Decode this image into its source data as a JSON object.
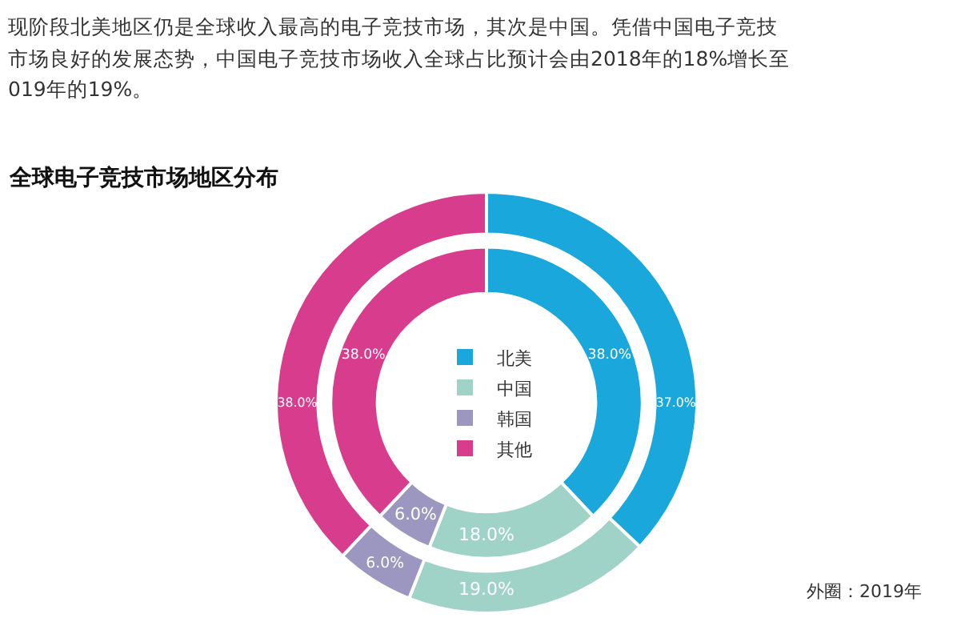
{
  "chart_data": {
    "type": "donut",
    "title": "全球电子竞技市场地区分布",
    "annotations": [
      "现阶段北美地区仍是全球收入最高的电子竞技市场，其次是中国。凭借中国电子竞技",
      "市场良好的发展态势，中国电子竞技市场收入全球占比预计会由2018年的18%增长至",
      "019年的19%。",
      "外圈：2019年"
    ],
    "categories": [
      "北美",
      "中国",
      "韩国",
      "其他"
    ],
    "colors": [
      "#1aa7dc",
      "#9fd3c7",
      "#9b97c1",
      "#d83c8c"
    ],
    "series": [
      {
        "values": [
          37,
          19,
          6,
          38
        ],
        "value_labels": [
          "37.0%",
          "19.0%",
          "6.0%",
          "38.0%"
        ]
      },
      {
        "values": [
          38,
          18,
          6,
          38
        ],
        "value_labels": [
          "38.0%",
          "18.0%",
          "6.0%",
          "38.0%"
        ]
      }
    ],
    "legend": "center"
  }
}
